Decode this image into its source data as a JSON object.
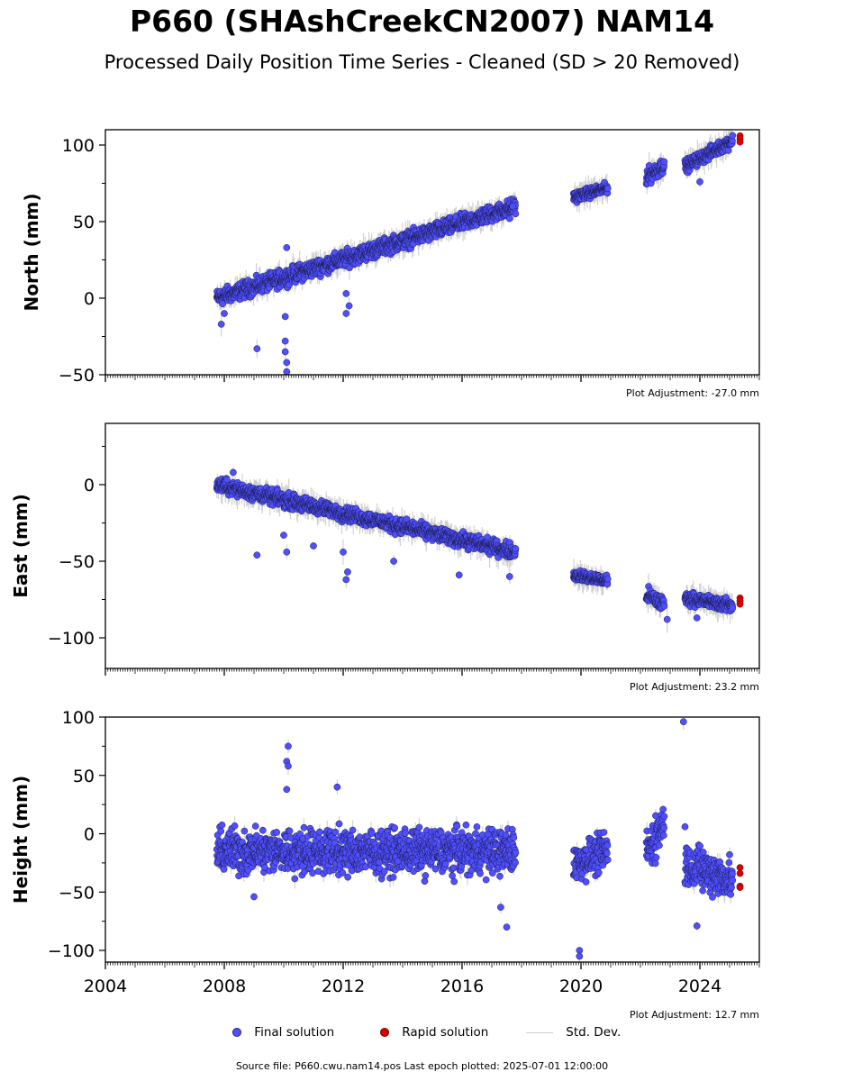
{
  "title": "P660 (SHAshCreekCN2007) NAM14",
  "subtitle": "Processed Daily Position Time Series - Cleaned (SD > 20 Removed)",
  "legend": {
    "final": "Final solution",
    "rapid": "Rapid solution",
    "std": "Std. Dev."
  },
  "source": "Source file: P660.cwu.nam14.pos  Last epoch plotted: 2025-07-01 12:00:00",
  "colors": {
    "final": "#4f4fff",
    "rapid": "#dd0000",
    "std": "#c8c8c8"
  },
  "chart_data": [
    {
      "type": "scatter",
      "ylabel": "North (mm)",
      "adjustment": "Plot Adjustment: -27.0 mm",
      "xlim": [
        2004,
        2026
      ],
      "ylim": [
        -50,
        110
      ],
      "yticks": [
        -50,
        0,
        50,
        100
      ],
      "series": [
        {
          "name": "Final solution",
          "segments": [
            {
              "x": [
                2007.75,
                2017.8
              ],
              "y": [
                0,
                60
              ],
              "noise": 4
            },
            {
              "x": [
                2019.75,
                2020.9
              ],
              "y": [
                66,
                72
              ],
              "noise": 2.5
            },
            {
              "x": [
                2022.2,
                2022.8
              ],
              "y": [
                79,
                87
              ],
              "noise": 4
            },
            {
              "x": [
                2023.5,
                2025.1
              ],
              "y": [
                86,
                103
              ],
              "noise": 3
            }
          ],
          "outliers": [
            [
              2007.9,
              -17
            ],
            [
              2008.0,
              -10
            ],
            [
              2009.1,
              -33
            ],
            [
              2010.05,
              -28
            ],
            [
              2010.05,
              -35
            ],
            [
              2010.1,
              -42
            ],
            [
              2010.1,
              -48
            ],
            [
              2010.05,
              -12
            ],
            [
              2012.1,
              -10
            ],
            [
              2012.1,
              3
            ],
            [
              2012.2,
              -5
            ],
            [
              2010.1,
              33
            ],
            [
              2024.0,
              76
            ],
            [
              2017.6,
              52
            ],
            [
              2017.7,
              60
            ]
          ]
        },
        {
          "name": "Rapid solution",
          "x": [
            2025.35,
            2025.35,
            2025.35
          ],
          "y": [
            106,
            104,
            102
          ]
        }
      ]
    },
    {
      "type": "scatter",
      "ylabel": "East (mm)",
      "adjustment": "Plot Adjustment: 23.2 mm",
      "xlim": [
        2004,
        2026
      ],
      "ylim": [
        -120,
        40
      ],
      "yticks": [
        -100,
        -50,
        0
      ],
      "series": [
        {
          "name": "Final solution",
          "segments": [
            {
              "x": [
                2007.75,
                2017.8
              ],
              "y": [
                0,
                -44
              ],
              "noise": 3.5
            },
            {
              "x": [
                2019.75,
                2020.9
              ],
              "y": [
                -59,
                -63
              ],
              "noise": 2.5
            },
            {
              "x": [
                2022.2,
                2022.8
              ],
              "y": [
                -72,
                -78
              ],
              "noise": 4
            },
            {
              "x": [
                2023.5,
                2025.1
              ],
              "y": [
                -74,
                -79
              ],
              "noise": 3
            }
          ],
          "outliers": [
            [
              2008.3,
              8
            ],
            [
              2009.1,
              -46
            ],
            [
              2010.1,
              -44
            ],
            [
              2010.0,
              -33
            ],
            [
              2012.1,
              -62
            ],
            [
              2012.15,
              -57
            ],
            [
              2012.0,
              -44
            ],
            [
              2011.0,
              -40
            ],
            [
              2013.7,
              -50
            ],
            [
              2015.9,
              -59
            ],
            [
              2017.6,
              -60
            ],
            [
              2023.9,
              -87
            ],
            [
              2022.9,
              -88
            ]
          ]
        },
        {
          "name": "Rapid solution",
          "x": [
            2025.35,
            2025.35,
            2025.35
          ],
          "y": [
            -74,
            -76,
            -78
          ]
        }
      ]
    },
    {
      "type": "scatter",
      "ylabel": "Height (mm)",
      "adjustment": "Plot Adjustment: 12.7 mm",
      "xlim": [
        2004,
        2026
      ],
      "xticks": [
        2004,
        2008,
        2012,
        2016,
        2020,
        2024
      ],
      "ylim": [
        -110,
        100
      ],
      "yticks": [
        -100,
        -50,
        0,
        50,
        100
      ],
      "series": [
        {
          "name": "Final solution",
          "segments": [
            {
              "x": [
                2007.75,
                2017.8
              ],
              "y": [
                -15,
                -15
              ],
              "noise": 14
            },
            {
              "x": [
                2019.75,
                2020.9
              ],
              "y": [
                -25,
                -15
              ],
              "noise": 12
            },
            {
              "x": [
                2022.2,
                2022.8
              ],
              "y": [
                -15,
                10
              ],
              "noise": 14
            },
            {
              "x": [
                2023.5,
                2025.1
              ],
              "y": [
                -25,
                -40
              ],
              "noise": 14
            }
          ],
          "outliers": [
            [
              2010.15,
              75
            ],
            [
              2010.1,
              62
            ],
            [
              2010.15,
              58
            ],
            [
              2010.1,
              38
            ],
            [
              2023.45,
              96
            ],
            [
              2019.95,
              -100
            ],
            [
              2019.95,
              -105
            ],
            [
              2017.5,
              -80
            ],
            [
              2023.9,
              -79
            ],
            [
              2009.0,
              -54
            ],
            [
              2017.3,
              -63
            ],
            [
              2023.5,
              6
            ],
            [
              2011.8,
              40
            ]
          ]
        },
        {
          "name": "Rapid solution",
          "x": [
            2025.35,
            2025.35,
            2025.35,
            2025.35
          ],
          "y": [
            -29,
            -34,
            -45,
            -46
          ]
        }
      ]
    }
  ]
}
